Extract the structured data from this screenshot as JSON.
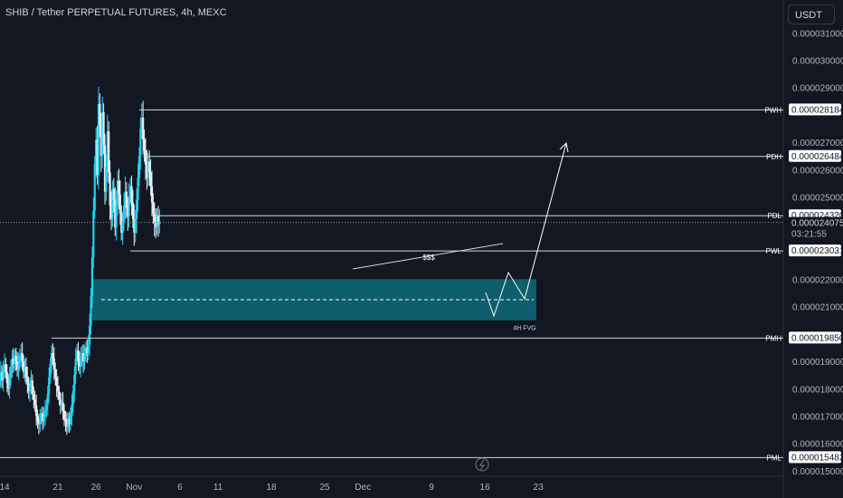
{
  "header": {
    "symbol_title": "SHIB / Tether PERPETUAL FUTURES, 4h, MEXC",
    "currency_button": "USDT"
  },
  "colors": {
    "background": "#131722",
    "up": "#22d1ee",
    "down": "#e9ecf2",
    "line": "#d1d4dc",
    "fvg": "#0e6b7a",
    "label_bg": "#ffffff",
    "label_text": "#131722"
  },
  "chart_data": {
    "type": "candlestick",
    "title": "SHIB / Tether PERPETUAL FUTURES, 4h, MEXC",
    "ylim": [
      1.48e-05,
      3.22e-05
    ],
    "y_ticks": [
      "0.000031000",
      "0.000030000",
      "0.000029000",
      "0.000027000",
      "0.000026000",
      "0.000025000",
      "0.000022000",
      "0.000021000",
      "0.000019000",
      "0.000018000",
      "0.000017000",
      "0.000016000",
      "0.000015000"
    ],
    "x_ticks": [
      {
        "label": "14",
        "day": 14
      },
      {
        "label": "21",
        "day": 21
      },
      {
        "label": "26",
        "day": 26
      },
      {
        "label": "Nov",
        "day": 31
      },
      {
        "label": "6",
        "day": 37
      },
      {
        "label": "11",
        "day": 42
      },
      {
        "label": "18",
        "day": 49
      },
      {
        "label": "25",
        "day": 56
      },
      {
        "label": "Dec",
        "day": 61
      },
      {
        "label": "9",
        "day": 70
      },
      {
        "label": "16",
        "day": 77
      },
      {
        "label": "23",
        "day": 84
      }
    ],
    "closes": [
      1.78e-05,
      1.81e-05,
      1.84e-05,
      1.86e-05,
      1.83e-05,
      1.87e-05,
      1.89e-05,
      1.86e-05,
      1.82e-05,
      1.8e-05,
      1.84e-05,
      1.88e-05,
      1.91e-05,
      1.89e-05,
      1.92e-05,
      1.9e-05,
      1.87e-05,
      1.89e-05,
      1.92e-05,
      1.93e-05,
      1.9e-05,
      1.86e-05,
      1.88e-05,
      1.84e-05,
      1.82e-05,
      1.79e-05,
      1.81e-05,
      1.83e-05,
      1.78e-05,
      1.76e-05,
      1.74e-05,
      1.7e-05,
      1.68e-05,
      1.67e-05,
      1.69e-05,
      1.71e-05,
      1.68e-05,
      1.7e-05,
      1.72e-05,
      1.74e-05,
      1.78e-05,
      1.84e-05,
      1.89e-05,
      1.93e-05,
      1.91e-05,
      1.87e-05,
      1.84e-05,
      1.81e-05,
      1.79e-05,
      1.76e-05,
      1.74e-05,
      1.75e-05,
      1.72e-05,
      1.69e-05,
      1.68e-05,
      1.66e-05,
      1.69e-05,
      1.67e-05,
      1.7e-05,
      1.74e-05,
      1.79e-05,
      1.85e-05,
      1.91e-05,
      1.94e-05,
      1.9e-05,
      1.88e-05,
      1.91e-05,
      1.93e-05,
      1.9e-05,
      1.92e-05,
      1.95e-05,
      1.93e-05,
      1.96e-05,
      2.03e-05,
      2.14e-05,
      2.28e-05,
      2.45e-05,
      2.62e-05,
      2.71e-05,
      2.58e-05,
      2.84e-05,
      2.76e-05,
      2.65e-05,
      2.81e-05,
      2.69e-05,
      2.52e-05,
      2.61e-05,
      2.74e-05,
      2.59e-05,
      2.47e-05,
      2.42e-05,
      2.53e-05,
      2.49e-05,
      2.39e-05,
      2.47e-05,
      2.56e-05,
      2.51e-05,
      2.44e-05,
      2.37e-05,
      2.41e-05,
      2.47e-05,
      2.52e-05,
      2.46e-05,
      2.43e-05,
      2.5e-05,
      2.54e-05,
      2.48e-05,
      2.42e-05,
      2.37e-05,
      2.42e-05,
      2.49e-05,
      2.57e-05,
      2.65e-05,
      2.75e-05,
      2.79e-05,
      2.71e-05,
      2.67e-05,
      2.62e-05,
      2.57e-05,
      2.63e-05,
      2.59e-05,
      2.54e-05,
      2.48e-05,
      2.44e-05,
      2.41e-05,
      2.39e-05,
      2.43e-05,
      2.4e-05,
      2.41e-05
    ],
    "levels": [
      {
        "name": "PWH",
        "value": "0.000028184",
        "price": 2.8184e-05,
        "start_index": 112
      },
      {
        "name": "PDH",
        "value": "0.000026484",
        "price": 2.6484e-05,
        "start_index": 115
      },
      {
        "name": "PDL",
        "value": "0.000024320",
        "price": 2.432e-05,
        "start_index": 122
      },
      {
        "name": "PWL",
        "value": "0.000023031",
        "price": 2.3031e-05,
        "start_index": 105
      },
      {
        "name": "PMH",
        "value": "0.000019850",
        "price": 1.985e-05,
        "start_index": 43
      },
      {
        "name": "PML",
        "value": "0.000015482",
        "price": 1.5482e-05,
        "start_index": 0
      }
    ],
    "current_price": {
      "value": "0.000024075",
      "price": 2.4075e-05,
      "countdown": "03:21:55"
    },
    "fvg": {
      "label": "4H FVG",
      "top": 2.2e-05,
      "bottom": 2.05e-05,
      "start_index": 75
    },
    "liquidity_label": "$$$",
    "annotations": [
      "PWH",
      "PDH",
      "PDL",
      "PWL",
      "PMH",
      "PML",
      "4H FVG",
      "$$$"
    ]
  }
}
